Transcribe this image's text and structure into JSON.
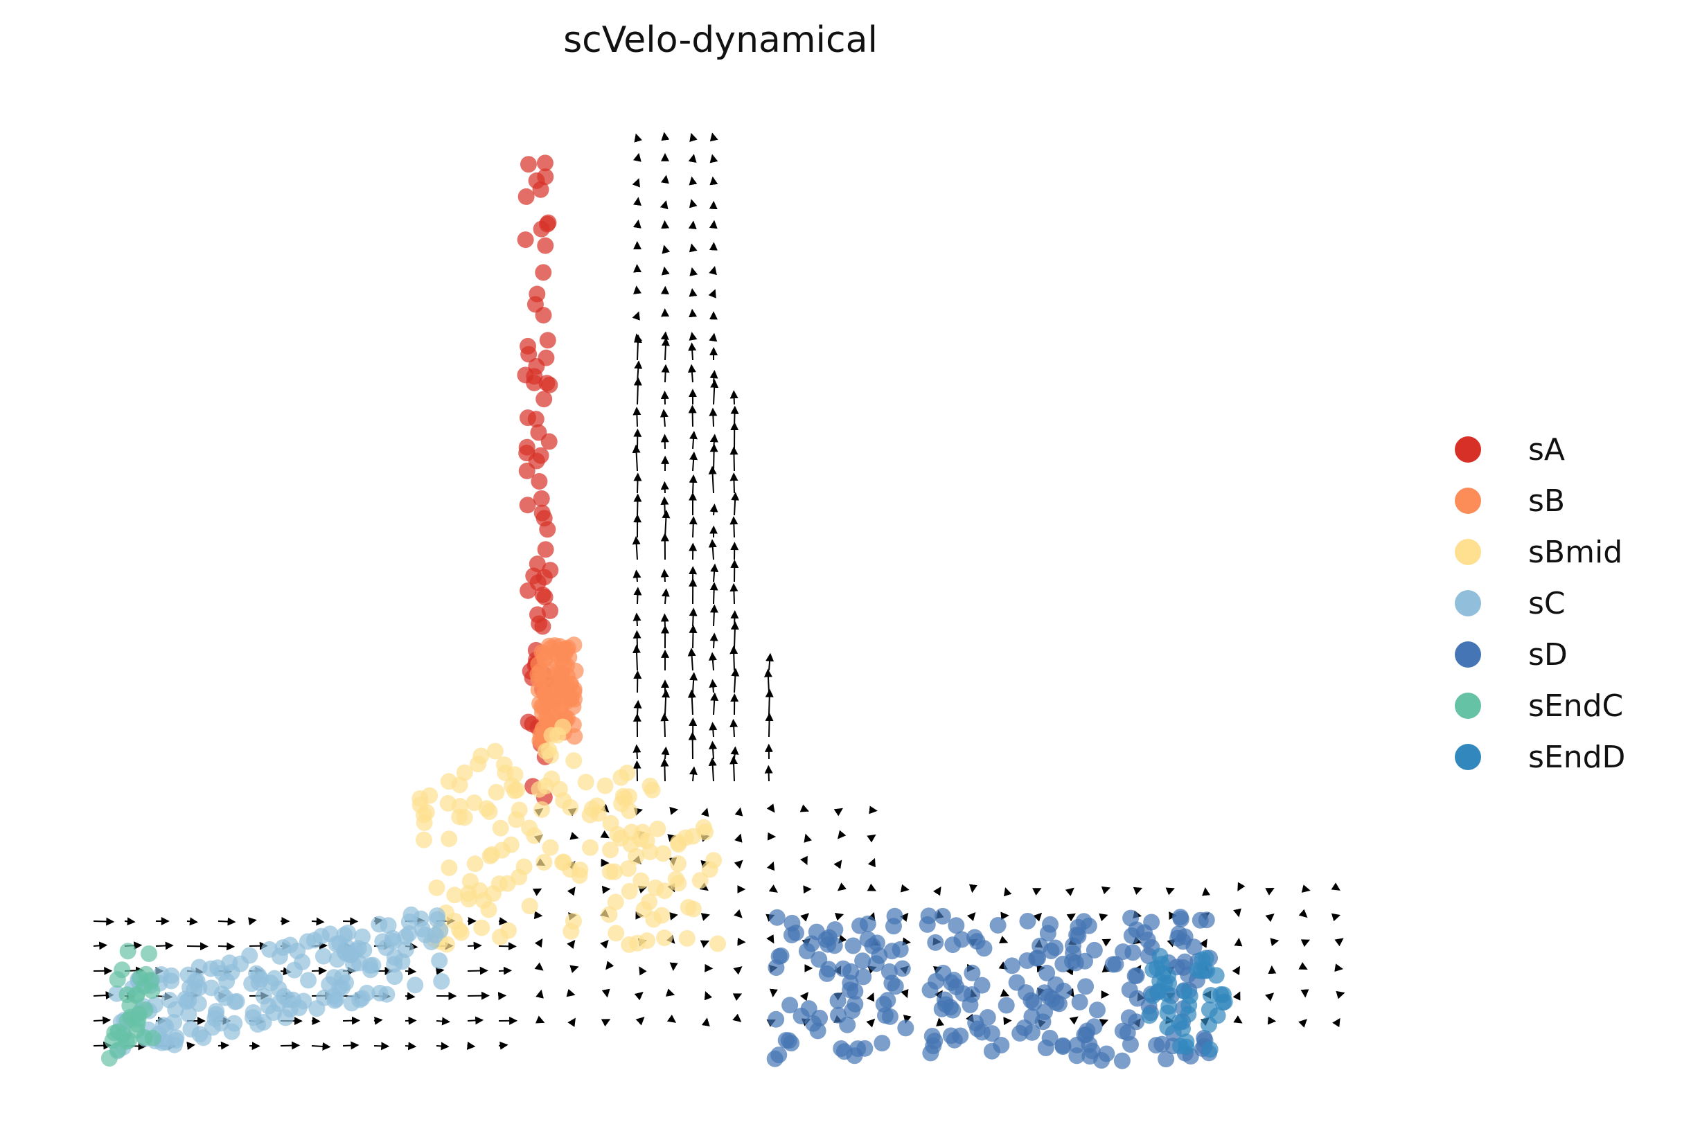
{
  "chart_data": {
    "type": "scatter",
    "title": "scVelo-dynamical",
    "xlabel": "",
    "ylabel": "",
    "grid": false,
    "axes_visible": false,
    "legend_placement": "right",
    "xlim": [
      0,
      100
    ],
    "ylim": [
      0,
      100
    ],
    "series": [
      {
        "name": "sA",
        "color": "#d73027",
        "cluster": {
          "x": [
            34.5,
            36.5
          ],
          "y": [
            29,
            96
          ],
          "n": 70
        }
      },
      {
        "name": "sB",
        "color": "#fc8d59",
        "cluster": {
          "x": [
            35.5,
            38.5
          ],
          "y": [
            35,
            45
          ],
          "n": 90
        }
      },
      {
        "name": "sBmid",
        "color": "#fee090",
        "cluster": {
          "x": [
            26,
            50
          ],
          "y": [
            14,
            38
          ],
          "n": 150
        }
      },
      {
        "name": "sC",
        "color": "#91bfdb",
        "cluster": {
          "x": [
            2,
            28
          ],
          "y": [
            2,
            18
          ],
          "n": 170
        }
      },
      {
        "name": "sD",
        "color": "#4575b4",
        "cluster": {
          "x": [
            54,
            89
          ],
          "y": [
            2,
            17
          ],
          "n": 230
        }
      },
      {
        "name": "sEndC",
        "color": "#66c2a5",
        "cluster": {
          "x": [
            1.5,
            5
          ],
          "y": [
            2,
            14
          ],
          "n": 30
        }
      },
      {
        "name": "sEndD",
        "color": "#3288bd",
        "cluster": {
          "x": [
            84,
            90
          ],
          "y": [
            3,
            13
          ],
          "n": 40
        }
      }
    ],
    "velocity_grid": {
      "color": "#000000",
      "note_shape": "upward along vertical stem, rightward along left branch"
    }
  }
}
